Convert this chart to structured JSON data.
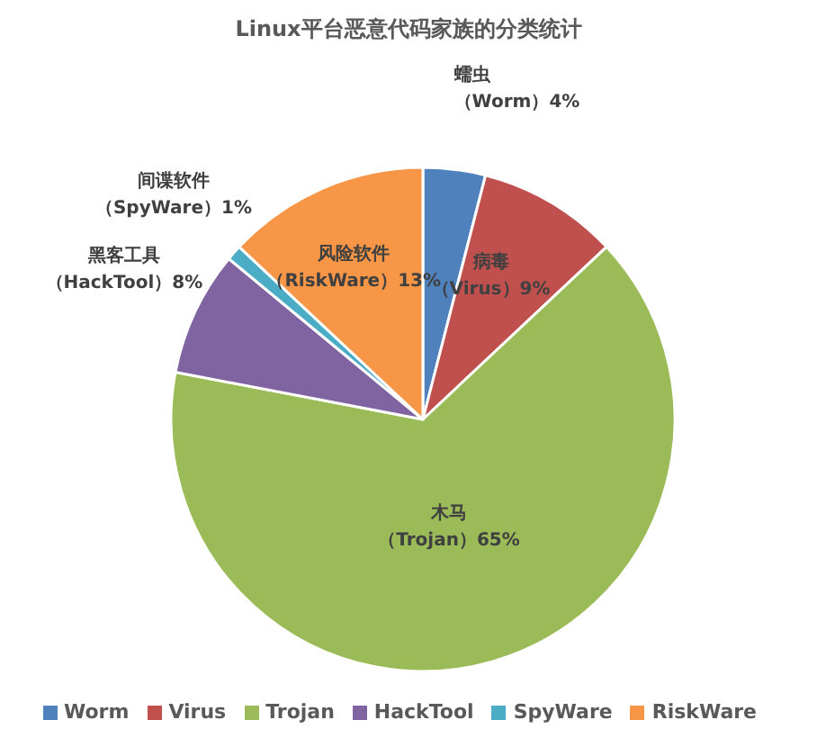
{
  "chart_data": {
    "type": "pie",
    "title": "Linux平台恶意代码家族的分类统计",
    "categories": [
      "Worm",
      "Virus",
      "Trojan",
      "HackTool",
      "SpyWare",
      "RiskWare"
    ],
    "values": [
      4,
      9,
      65,
      8,
      1,
      13
    ],
    "colors": [
      "#4f81bd",
      "#c0504d",
      "#9bbb59",
      "#8064a2",
      "#4bacc6",
      "#f79646"
    ],
    "value_labels": [
      "蠕虫（Worm）4%",
      "病毒（Virus）9%",
      "木马（Trojan）65%",
      "黑客工具（HackTool）8%",
      "间谍软件（SpyWare）1%",
      "风险软件（RiskWare）13%"
    ],
    "legend": "bottom"
  }
}
